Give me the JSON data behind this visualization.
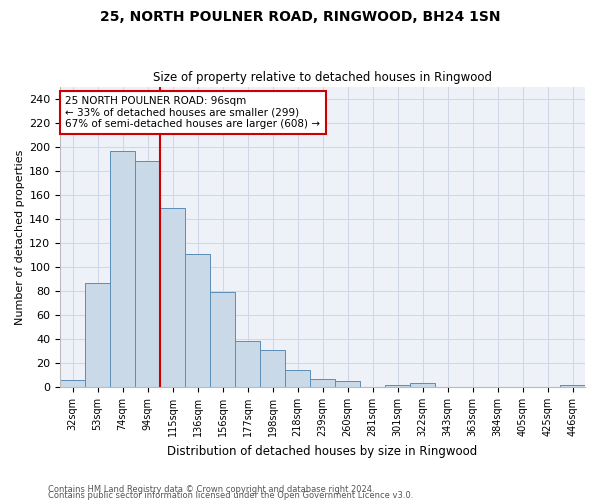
{
  "title1": "25, NORTH POULNER ROAD, RINGWOOD, BH24 1SN",
  "title2": "Size of property relative to detached houses in Ringwood",
  "xlabel": "Distribution of detached houses by size in Ringwood",
  "ylabel": "Number of detached properties",
  "bar_labels": [
    "32sqm",
    "53sqm",
    "74sqm",
    "94sqm",
    "115sqm",
    "136sqm",
    "156sqm",
    "177sqm",
    "198sqm",
    "218sqm",
    "239sqm",
    "260sqm",
    "281sqm",
    "301sqm",
    "322sqm",
    "343sqm",
    "363sqm",
    "384sqm",
    "405sqm",
    "425sqm",
    "446sqm"
  ],
  "bar_values": [
    6,
    87,
    197,
    188,
    149,
    111,
    79,
    38,
    31,
    14,
    7,
    5,
    0,
    2,
    3,
    0,
    0,
    0,
    0,
    0,
    2
  ],
  "bar_color": "#c9d9e8",
  "bar_edge_color": "#5b8db8",
  "red_line_index": 3,
  "annotation_text": "25 NORTH POULNER ROAD: 96sqm\n← 33% of detached houses are smaller (299)\n67% of semi-detached houses are larger (608) →",
  "annotation_box_color": "#ffffff",
  "annotation_border_color": "#cc0000",
  "ylim": [
    0,
    250
  ],
  "yticks": [
    0,
    20,
    40,
    60,
    80,
    100,
    120,
    140,
    160,
    180,
    200,
    220,
    240
  ],
  "footer1": "Contains HM Land Registry data © Crown copyright and database right 2024.",
  "footer2": "Contains public sector information licensed under the Open Government Licence v3.0.",
  "grid_color": "#d0d8e8",
  "background_color": "#eef2f8"
}
